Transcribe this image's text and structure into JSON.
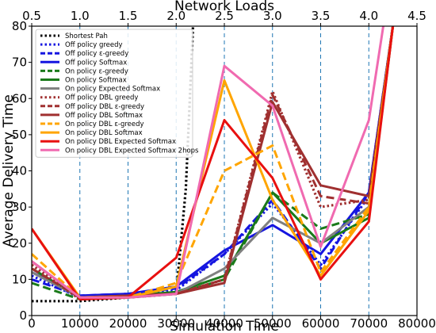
{
  "chart_data": {
    "type": "line",
    "title": "",
    "xlabel": "Simulation Time",
    "ylabel": "Average Delivery Time",
    "top_xlabel": "Network Loads",
    "xlim": [
      0,
      80000
    ],
    "ylim": [
      0,
      80
    ],
    "top_xlim": [
      0.5,
      4.5
    ],
    "x_ticks": [
      0,
      10000,
      20000,
      30000,
      40000,
      50000,
      60000,
      70000,
      80000
    ],
    "y_ticks": [
      0,
      10,
      20,
      30,
      40,
      50,
      60,
      70,
      80
    ],
    "top_ticks": [
      "0.5",
      "1.0",
      "1.5",
      "2.0",
      "2.5",
      "3.0",
      "3.5",
      "4.0",
      "4.5"
    ],
    "vertical_gridlines_at": [
      10000,
      20000,
      30000,
      40000,
      50000,
      60000,
      70000
    ],
    "legend_position": "upper-left",
    "x": [
      0,
      10000,
      20000,
      30000,
      40000,
      50000,
      60000,
      70000,
      75000
    ],
    "series": [
      {
        "name": "Shortest Pah",
        "color": "#000000",
        "dash": "dotted",
        "x": [
          0,
          10000,
          30000,
          32000,
          33500
        ],
        "values": [
          4,
          4,
          6,
          35,
          80
        ]
      },
      {
        "name": "Off policy greedy",
        "color": "#1515e0",
        "dash": "dotted",
        "values": [
          11,
          5,
          5.5,
          7,
          17,
          31,
          14,
          33,
          80
        ]
      },
      {
        "name": "Off policy ε-greedy",
        "color": "#1515e0",
        "dash": "dashed",
        "values": [
          10,
          5.5,
          6,
          7.5,
          17,
          32,
          13,
          34,
          80
        ]
      },
      {
        "name": "Off policy Softmax",
        "color": "#1515e0",
        "dash": "solid",
        "values": [
          12,
          5.5,
          6,
          8,
          18,
          25,
          17,
          34,
          80
        ]
      },
      {
        "name": "On policy ε-greedy",
        "color": "#1a7a1a",
        "dash": "dashed",
        "values": [
          9,
          4.5,
          5,
          6,
          10,
          34,
          24,
          28,
          80
        ]
      },
      {
        "name": "On policy Softmax",
        "color": "#1a7a1a",
        "dash": "solid",
        "values": [
          13,
          5,
          5.5,
          6.5,
          11,
          34,
          20,
          27,
          80
        ]
      },
      {
        "name": "On policy Expected Softmax",
        "color": "#808080",
        "dash": "solid",
        "values": [
          12,
          5,
          5.5,
          6,
          13,
          27,
          20,
          30,
          80
        ]
      },
      {
        "name": "Off policy DBL greedy",
        "color": "#a03030",
        "dash": "dotted",
        "values": [
          14,
          4.5,
          5,
          6,
          10,
          62,
          30,
          32,
          80
        ]
      },
      {
        "name": "Off policy DBL ε-greedy",
        "color": "#a03030",
        "dash": "dashed",
        "values": [
          13,
          5,
          5,
          6,
          10,
          61,
          33,
          31,
          80
        ]
      },
      {
        "name": "Off policy DBL Softmax",
        "color": "#a03030",
        "dash": "solid",
        "values": [
          15,
          5,
          5.5,
          6,
          9,
          59,
          36,
          33,
          80
        ]
      },
      {
        "name": "On policy DBL ε-greedy",
        "color": "#ffa500",
        "dash": "dashed",
        "values": [
          17,
          5,
          5,
          9,
          40,
          47,
          12,
          30,
          80
        ]
      },
      {
        "name": "On policy DBL Softmax",
        "color": "#ffa500",
        "dash": "solid",
        "values": [
          24,
          5,
          5,
          8,
          65,
          32,
          11,
          29,
          80
        ]
      },
      {
        "name": "On policy DBL Expected Softmax",
        "color": "#e81010",
        "dash": "solid",
        "values": [
          24,
          4.5,
          5,
          16,
          54,
          38,
          10,
          26,
          80
        ]
      },
      {
        "name": "On policy DBL Expected Softmax 2hops",
        "color": "#f06ab0",
        "dash": "solid",
        "x": [
          0,
          10000,
          20000,
          30000,
          40000,
          50000,
          60000,
          70000,
          73000
        ],
        "values": [
          15,
          5,
          5,
          6,
          69,
          58,
          19,
          54,
          80
        ]
      }
    ]
  }
}
